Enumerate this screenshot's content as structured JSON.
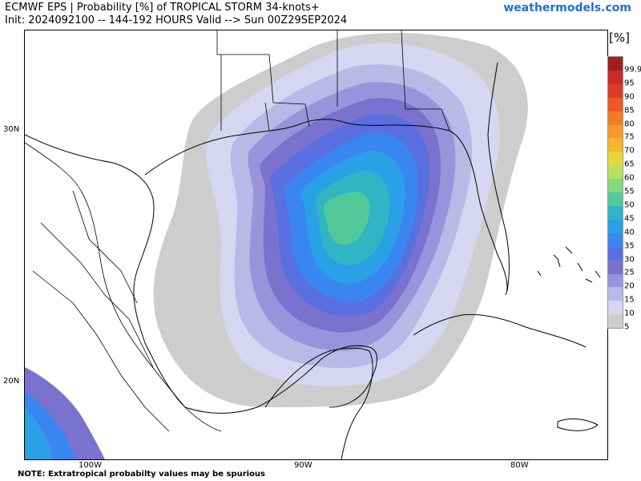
{
  "header": {
    "title_line1": "ECMWF EPS | Probability [%] of TROPICAL STORM 34-knots+",
    "title_line2": "Init: 2024092100 -- 144-192 HOURS Valid --> Sun 00Z29SEP2024",
    "brand": "weathermodels.com"
  },
  "map": {
    "lat_labels": [
      "30N",
      "20N"
    ],
    "lon_labels": [
      "100W",
      "90W",
      "80W"
    ]
  },
  "legend": {
    "unit": "[%]",
    "levels": [
      "99.9",
      "95",
      "90",
      "85",
      "80",
      "75",
      "70",
      "65",
      "60",
      "55",
      "50",
      "45",
      "40",
      "35",
      "30",
      "25",
      "20",
      "15",
      "10",
      "5"
    ],
    "colors": [
      "#a31e1e",
      "#c92a2a",
      "#de3c26",
      "#eb5a24",
      "#f07c25",
      "#f59a2a",
      "#f5b52e",
      "#e6d83a",
      "#b8e05a",
      "#86d97a",
      "#52c99b",
      "#2fb5c4",
      "#2aa0e6",
      "#3a86f0",
      "#5a6fe0",
      "#7a72cf",
      "#9a93dc",
      "#bbb8e8",
      "#d6d6f0",
      "#cdcdcd"
    ]
  },
  "footer": {
    "note": "NOTE: Extratropical probabilty values may be spurious"
  }
}
